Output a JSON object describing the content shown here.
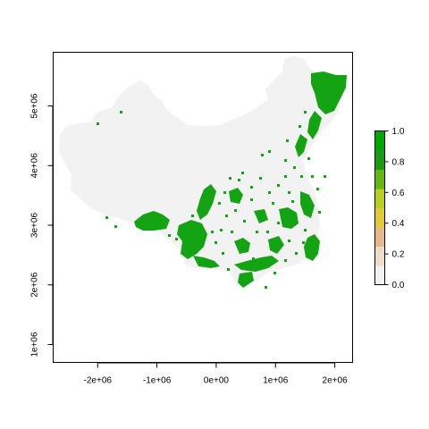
{
  "chart_data": {
    "type": "heatmap",
    "title": "",
    "xlabel": "",
    "ylabel": "",
    "xlim": [
      -2750000,
      2300000
    ],
    "ylim": [
      700000,
      5900000
    ],
    "x_ticks": [
      {
        "value": -2000000,
        "label": "-2e+06"
      },
      {
        "value": -1000000,
        "label": "-1e+06"
      },
      {
        "value": 0,
        "label": "0e+00"
      },
      {
        "value": 1000000,
        "label": "1e+06"
      },
      {
        "value": 2000000,
        "label": "2e+06"
      }
    ],
    "y_ticks": [
      {
        "value": 1000000,
        "label": "1e+06"
      },
      {
        "value": 2000000,
        "label": "2e+06"
      },
      {
        "value": 3000000,
        "label": "3e+06"
      },
      {
        "value": 4000000,
        "label": "4e+06"
      },
      {
        "value": 5000000,
        "label": "5e+06"
      }
    ],
    "legend": {
      "position": "right",
      "range": [
        0,
        1
      ],
      "ticks": [
        {
          "value": 0.0,
          "label": "0.0"
        },
        {
          "value": 0.2,
          "label": "0.2"
        },
        {
          "value": 0.4,
          "label": "0.4"
        },
        {
          "value": 0.6,
          "label": "0.6"
        },
        {
          "value": 0.8,
          "label": "0.8"
        },
        {
          "value": 1.0,
          "label": "1.0"
        }
      ],
      "colors": [
        "#f2f2f2",
        "#eedcc6",
        "#e6b98d",
        "#e2ca36",
        "#b7cf1e",
        "#63b813",
        "#1a9c14",
        "#00a600"
      ]
    },
    "colors": {
      "region_background": "#f2f2f2",
      "presence": "#13a313"
    },
    "grid": false
  }
}
